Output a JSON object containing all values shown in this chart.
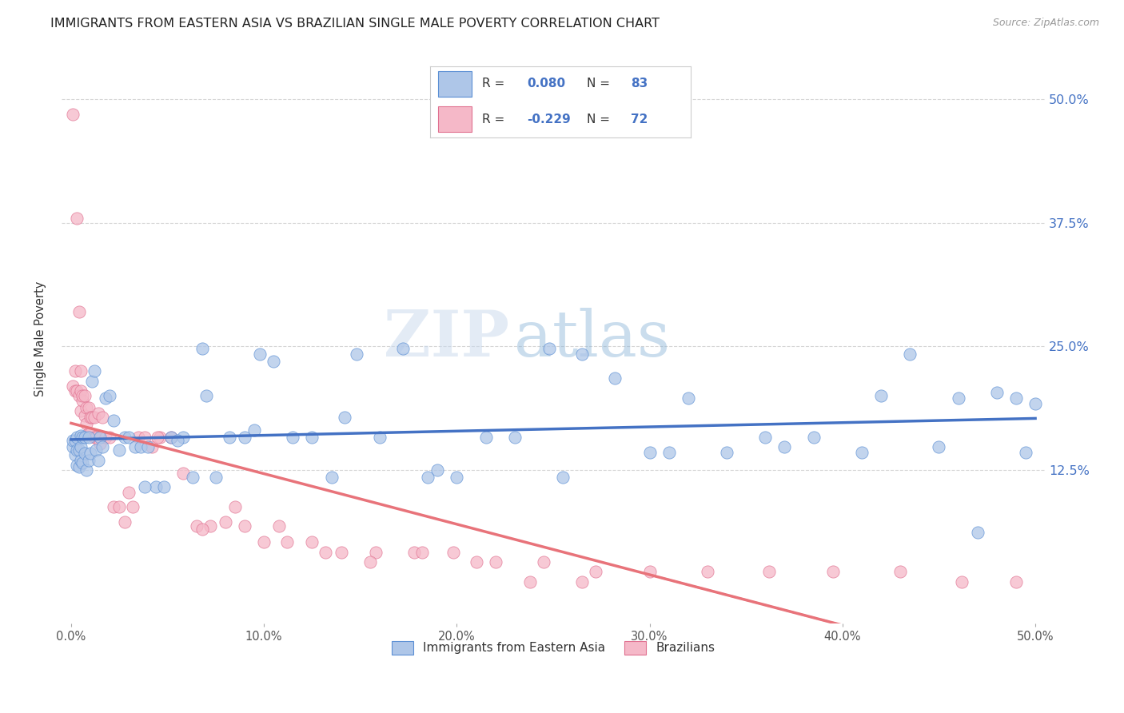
{
  "title": "IMMIGRANTS FROM EASTERN ASIA VS BRAZILIAN SINGLE MALE POVERTY CORRELATION CHART",
  "source": "Source: ZipAtlas.com",
  "ylabel": "Single Male Poverty",
  "ytick_vals": [
    0.125,
    0.25,
    0.375,
    0.5
  ],
  "ytick_labels": [
    "12.5%",
    "25.0%",
    "37.5%",
    "50.0%"
  ],
  "xtick_vals": [
    0.0,
    0.1,
    0.2,
    0.3,
    0.4,
    0.5
  ],
  "xtick_labels": [
    "0.0%",
    "10.0%",
    "20.0%",
    "30.0%",
    "40.0%",
    "50.0%"
  ],
  "xlim": [
    -0.005,
    0.505
  ],
  "ylim": [
    -0.03,
    0.545
  ],
  "r_blue": 0.08,
  "n_blue": 83,
  "r_pink": -0.229,
  "n_pink": 72,
  "blue_fill": "#aec6e8",
  "blue_edge": "#5b8fd4",
  "pink_fill": "#f5b8c8",
  "pink_edge": "#e07090",
  "blue_line": "#4472c4",
  "pink_line": "#e8737a",
  "legend_label_blue": "Immigrants from Eastern Asia",
  "legend_label_pink": "Brazilians",
  "title_fontsize": 11.5,
  "source_fontsize": 9,
  "marker_size": 120,
  "blue_x": [
    0.001,
    0.001,
    0.002,
    0.002,
    0.003,
    0.003,
    0.003,
    0.004,
    0.004,
    0.005,
    0.005,
    0.005,
    0.006,
    0.006,
    0.007,
    0.007,
    0.008,
    0.009,
    0.009,
    0.01,
    0.011,
    0.012,
    0.013,
    0.014,
    0.015,
    0.016,
    0.018,
    0.02,
    0.022,
    0.025,
    0.028,
    0.03,
    0.033,
    0.036,
    0.04,
    0.044,
    0.048,
    0.052,
    0.058,
    0.063,
    0.068,
    0.075,
    0.082,
    0.09,
    0.098,
    0.105,
    0.115,
    0.125,
    0.135,
    0.148,
    0.16,
    0.172,
    0.185,
    0.2,
    0.215,
    0.23,
    0.248,
    0.265,
    0.282,
    0.3,
    0.32,
    0.34,
    0.36,
    0.385,
    0.41,
    0.435,
    0.46,
    0.48,
    0.495,
    0.5,
    0.038,
    0.055,
    0.07,
    0.095,
    0.142,
    0.19,
    0.255,
    0.31,
    0.37,
    0.42,
    0.45,
    0.47,
    0.49
  ],
  "blue_y": [
    0.148,
    0.155,
    0.14,
    0.155,
    0.13,
    0.145,
    0.158,
    0.128,
    0.145,
    0.135,
    0.148,
    0.16,
    0.132,
    0.158,
    0.142,
    0.158,
    0.125,
    0.135,
    0.158,
    0.142,
    0.215,
    0.225,
    0.145,
    0.135,
    0.158,
    0.148,
    0.198,
    0.2,
    0.175,
    0.145,
    0.158,
    0.158,
    0.148,
    0.148,
    0.148,
    0.108,
    0.108,
    0.158,
    0.158,
    0.118,
    0.248,
    0.118,
    0.158,
    0.158,
    0.242,
    0.235,
    0.158,
    0.158,
    0.118,
    0.242,
    0.158,
    0.248,
    0.118,
    0.118,
    0.158,
    0.158,
    0.248,
    0.242,
    0.218,
    0.143,
    0.198,
    0.143,
    0.158,
    0.158,
    0.143,
    0.242,
    0.198,
    0.203,
    0.143,
    0.192,
    0.108,
    0.155,
    0.2,
    0.165,
    0.178,
    0.125,
    0.118,
    0.143,
    0.148,
    0.2,
    0.148,
    0.062,
    0.198
  ],
  "pink_x": [
    0.001,
    0.001,
    0.002,
    0.002,
    0.003,
    0.003,
    0.004,
    0.004,
    0.005,
    0.005,
    0.005,
    0.006,
    0.006,
    0.007,
    0.007,
    0.008,
    0.008,
    0.009,
    0.009,
    0.01,
    0.01,
    0.011,
    0.012,
    0.012,
    0.013,
    0.014,
    0.015,
    0.016,
    0.018,
    0.02,
    0.022,
    0.025,
    0.028,
    0.03,
    0.035,
    0.038,
    0.042,
    0.046,
    0.052,
    0.058,
    0.065,
    0.072,
    0.08,
    0.09,
    0.1,
    0.112,
    0.125,
    0.14,
    0.158,
    0.178,
    0.198,
    0.22,
    0.245,
    0.272,
    0.3,
    0.33,
    0.362,
    0.395,
    0.43,
    0.462,
    0.49,
    0.032,
    0.045,
    0.068,
    0.085,
    0.108,
    0.132,
    0.155,
    0.182,
    0.21,
    0.238,
    0.265
  ],
  "pink_y": [
    0.485,
    0.21,
    0.205,
    0.225,
    0.38,
    0.205,
    0.285,
    0.2,
    0.205,
    0.185,
    0.225,
    0.195,
    0.2,
    0.18,
    0.2,
    0.172,
    0.188,
    0.162,
    0.188,
    0.162,
    0.178,
    0.178,
    0.178,
    0.158,
    0.158,
    0.182,
    0.152,
    0.178,
    0.158,
    0.158,
    0.088,
    0.088,
    0.072,
    0.102,
    0.158,
    0.158,
    0.148,
    0.158,
    0.158,
    0.122,
    0.068,
    0.068,
    0.072,
    0.068,
    0.052,
    0.052,
    0.052,
    0.042,
    0.042,
    0.042,
    0.042,
    0.032,
    0.032,
    0.022,
    0.022,
    0.022,
    0.022,
    0.022,
    0.022,
    0.012,
    0.012,
    0.088,
    0.158,
    0.065,
    0.088,
    0.068,
    0.042,
    0.032,
    0.042,
    0.032,
    0.012,
    0.012
  ]
}
